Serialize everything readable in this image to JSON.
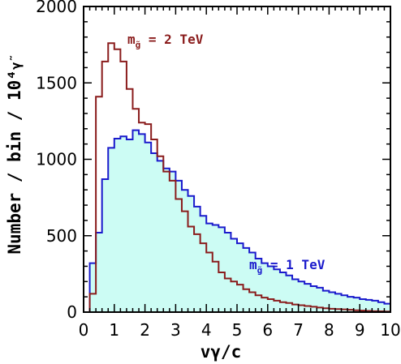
{
  "chart_data": {
    "type": "histogram",
    "xlabel": "vγ/c",
    "ylabel": "Number / bin / 10⁴",
    "ylabel_trailing_symbol": "γ̃",
    "xlim": [
      0,
      10
    ],
    "ylim": [
      0,
      2000
    ],
    "x_ticks": [
      "0",
      "1",
      "2",
      "3",
      "4",
      "5",
      "6",
      "7",
      "8",
      "9",
      "10"
    ],
    "y_ticks": [
      "0",
      "500",
      "1000",
      "1500",
      "2000"
    ],
    "bin_width": 0.2,
    "grid": false,
    "series": [
      {
        "annotation": {
          "prefix": "m",
          "subscript": "g̃",
          "suffix": " = 1 TeV",
          "color": "#1a1acc"
        },
        "color": "#1a1acc",
        "fill": "#ccfcf4",
        "values": [
          0,
          320,
          520,
          870,
          1075,
          1135,
          1150,
          1130,
          1190,
          1165,
          1110,
          1040,
          990,
          940,
          920,
          860,
          800,
          760,
          690,
          630,
          580,
          570,
          555,
          520,
          480,
          450,
          420,
          390,
          350,
          320,
          300,
          280,
          260,
          240,
          215,
          200,
          185,
          170,
          160,
          140,
          130,
          120,
          110,
          100,
          95,
          85,
          80,
          75,
          65,
          55
        ]
      },
      {
        "annotation": {
          "prefix": "m",
          "subscript": "g̃",
          "suffix": " = 2 TeV",
          "color": "#8a1c1c"
        },
        "color": "#8a1c1c",
        "fill": null,
        "values": [
          0,
          120,
          1410,
          1640,
          1760,
          1720,
          1640,
          1460,
          1330,
          1240,
          1230,
          1130,
          1020,
          920,
          860,
          740,
          660,
          560,
          510,
          450,
          390,
          330,
          260,
          220,
          200,
          180,
          150,
          130,
          110,
          95,
          85,
          75,
          65,
          60,
          50,
          45,
          40,
          35,
          30,
          25,
          22,
          20,
          18,
          15,
          12,
          10,
          8,
          6,
          5,
          4
        ]
      }
    ]
  }
}
